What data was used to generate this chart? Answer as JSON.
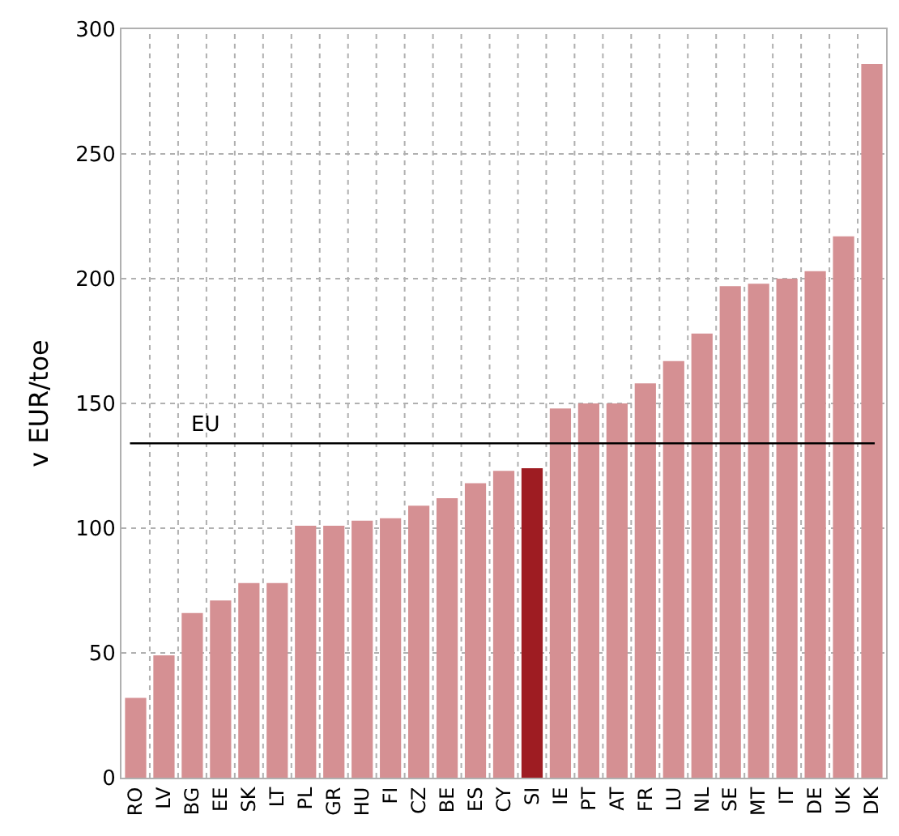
{
  "chart_data": {
    "type": "bar",
    "ylabel": "v EUR/toe",
    "categories": [
      "RO",
      "LV",
      "BG",
      "EE",
      "SK",
      "LT",
      "PL",
      "GR",
      "HU",
      "FI",
      "CZ",
      "BE",
      "ES",
      "CY",
      "SI",
      "IE",
      "PT",
      "AT",
      "FR",
      "LU",
      "NL",
      "SE",
      "MT",
      "IT",
      "DE",
      "UK",
      "DK"
    ],
    "values": [
      32,
      49,
      66,
      71,
      78,
      78,
      101,
      101,
      103,
      104,
      109,
      112,
      118,
      123,
      124,
      148,
      150,
      150,
      158,
      167,
      178,
      197,
      198,
      200,
      203,
      217,
      286
    ],
    "colors": [
      "#d59093",
      "#d59093",
      "#d59093",
      "#d59093",
      "#d59093",
      "#d59093",
      "#d59093",
      "#d59093",
      "#d59093",
      "#d59093",
      "#d59093",
      "#d59093",
      "#d59093",
      "#d59093",
      "#9e1c22",
      "#d59093",
      "#d59093",
      "#d59093",
      "#d59093",
      "#d59093",
      "#d59093",
      "#d59093",
      "#d59093",
      "#d59093",
      "#d59093",
      "#d59093",
      "#d59093"
    ],
    "ylim": [
      0,
      300
    ],
    "yticks": [
      0,
      50,
      100,
      150,
      200,
      250,
      300
    ],
    "grid": true,
    "ref_lines": [
      {
        "axis": "y",
        "value": 134,
        "label": "EU",
        "color": "#000000"
      }
    ]
  }
}
